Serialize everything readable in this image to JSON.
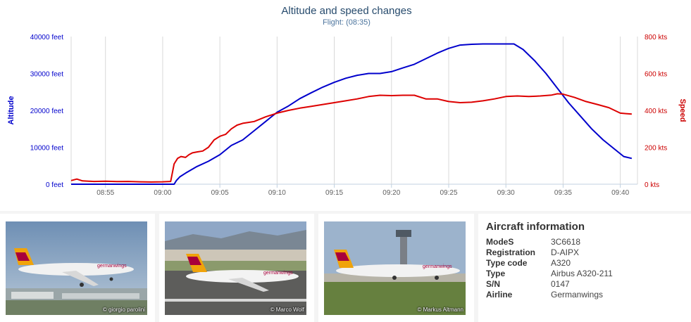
{
  "chart_data": {
    "type": "line",
    "title": "Altitude and speed changes",
    "subtitle": "Flight: (08:35)",
    "x_ticks": [
      "08:55",
      "09:00",
      "09:05",
      "09:10",
      "09:15",
      "09:20",
      "09:25",
      "09:30",
      "09:35",
      "09:40"
    ],
    "x_tick_minutes": [
      55,
      60,
      65,
      70,
      75,
      80,
      85,
      90,
      95,
      100
    ],
    "xlim": [
      52,
      101.5
    ],
    "y_left": {
      "label": "Altitude",
      "ticks": [
        "0 feet",
        "10000 feet",
        "20000 feet",
        "30000 feet",
        "40000 feet"
      ],
      "tick_values": [
        0,
        10000,
        20000,
        30000,
        40000
      ],
      "range": [
        0,
        40000
      ]
    },
    "y_right": {
      "label": "Speed",
      "ticks": [
        "0 kts",
        "200 kts",
        "400 kts",
        "600 kts",
        "800 kts"
      ],
      "tick_values": [
        0,
        200,
        400,
        600,
        800
      ],
      "range": [
        0,
        800
      ]
    },
    "grid": "vertical",
    "series": [
      {
        "name": "Altitude",
        "axis": "left",
        "color": "#0000cc",
        "x": [
          52,
          53,
          55,
          57,
          59,
          60,
          61,
          61.2,
          61.5,
          62,
          63,
          64,
          65,
          66,
          67,
          68,
          69,
          70,
          71,
          72,
          73,
          74,
          75,
          76,
          77,
          78,
          79,
          80,
          81,
          82,
          83,
          84,
          85,
          86,
          87,
          88,
          89,
          90,
          90.7,
          91.5,
          92.5,
          93.5,
          94.5,
          95.5,
          96.5,
          97.5,
          98.5,
          99.5,
          100.3,
          101
        ],
        "y": [
          0,
          0,
          0,
          0,
          0,
          0,
          0,
          1000,
          2000,
          3000,
          4800,
          6200,
          8000,
          10500,
          12000,
          14500,
          17000,
          19500,
          21200,
          23200,
          24800,
          26300,
          27600,
          28700,
          29500,
          30000,
          30000,
          30500,
          31500,
          32500,
          34000,
          35500,
          36800,
          37700,
          37900,
          38000,
          38000,
          38000,
          38000,
          36500,
          33500,
          30000,
          26000,
          22000,
          18500,
          15000,
          12000,
          9500,
          7500,
          7000
        ]
      },
      {
        "name": "Speed",
        "axis": "right",
        "color": "#dd0000",
        "x": [
          52,
          52.5,
          53,
          54,
          55,
          56,
          57,
          58,
          59,
          60,
          60.7,
          61,
          61.3,
          61.6,
          62,
          62.3,
          62.6,
          63,
          63.5,
          64,
          64.5,
          65,
          65.5,
          66,
          66.5,
          67,
          67.5,
          68,
          69,
          70,
          71,
          72,
          73,
          74,
          75,
          76,
          77,
          78,
          79,
          80,
          81,
          82,
          83,
          84,
          85,
          86,
          87,
          88,
          89,
          90,
          91,
          92,
          93,
          94,
          94.5,
          95,
          96,
          97,
          98,
          99,
          100,
          101
        ],
        "y": [
          20,
          28,
          18,
          15,
          16,
          14,
          15,
          13,
          12,
          13,
          15,
          110,
          140,
          150,
          145,
          160,
          170,
          175,
          180,
          200,
          240,
          260,
          270,
          300,
          320,
          330,
          335,
          340,
          365,
          385,
          400,
          412,
          422,
          432,
          442,
          452,
          462,
          475,
          482,
          480,
          482,
          482,
          462,
          462,
          448,
          442,
          444,
          452,
          462,
          475,
          478,
          475,
          478,
          483,
          490,
          488,
          470,
          448,
          432,
          415,
          385,
          380
        ]
      }
    ]
  },
  "photos": [
    {
      "credit": "© giorgio parolini"
    },
    {
      "credit": "© Marco Wolf"
    },
    {
      "credit": "© Markus Altmann"
    }
  ],
  "aircraft": {
    "title": "Aircraft information",
    "rows": [
      {
        "key": "ModeS",
        "value": "3C6618"
      },
      {
        "key": "Registration",
        "value": "D-AIPX"
      },
      {
        "key": "Type code",
        "value": "A320"
      },
      {
        "key": "Type",
        "value": "Airbus A320-211"
      },
      {
        "key": "S/N",
        "value": "0147"
      },
      {
        "key": "Airline",
        "value": "Germanwings"
      }
    ]
  }
}
